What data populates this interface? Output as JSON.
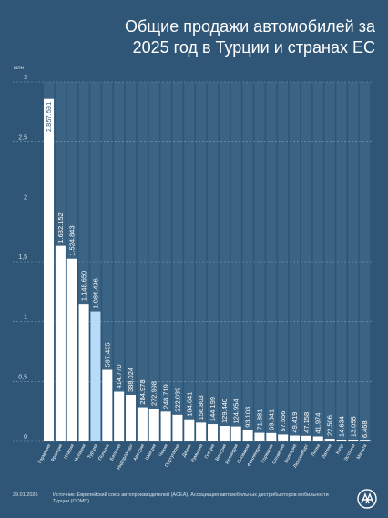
{
  "chart_data": {
    "type": "bar",
    "title": "Общие продажи автомобилей за 2025 год в Турции и странах ЕС",
    "ylabel": "млн",
    "ylim": [
      0,
      3
    ],
    "yticks": [
      0,
      0.5,
      1,
      1.5,
      2,
      2.5,
      3
    ],
    "ytick_labels": [
      "0",
      "0,5",
      "1",
      "1,5",
      "2",
      "2,5",
      "3"
    ],
    "grid": true,
    "categories": [
      "Германия",
      "Франция",
      "Италия",
      "Испания",
      "Турция",
      "Польша",
      "Бельгия",
      "Нидерланды",
      "Австрия",
      "Швеция",
      "Чехия",
      "Португалия",
      "Дания",
      "Румыния",
      "Греция",
      "Венгрия",
      "Ирландия",
      "Словакия",
      "Финляндия",
      "Хорватия",
      "Словения",
      "Болгария",
      "Люксембург",
      "Литва",
      "Латвия",
      "Кипр",
      "Эстония",
      "Мальта"
    ],
    "values": [
      2857591,
      1632152,
      1524843,
      1148650,
      1084496,
      597435,
      414770,
      388024,
      284978,
      272998,
      248719,
      222039,
      184641,
      156803,
      144199,
      129440,
      124954,
      93103,
      71881,
      69841,
      57556,
      49419,
      47158,
      41974,
      22506,
      14634,
      13055,
      6468
    ],
    "value_labels": [
      "2.857.591",
      "1.632.152",
      "1.524.843",
      "1.148.650",
      "1.084.496",
      "597.435",
      "414.770",
      "388.024",
      "284.978",
      "272.998",
      "248.719",
      "222.039",
      "184.641",
      "156.803",
      "144.199",
      "129.440",
      "124.954",
      "93.103",
      "71.881",
      "69.841",
      "57.556",
      "49.419",
      "47.158",
      "41.974",
      "22.506",
      "14.634",
      "13.055",
      "6.468"
    ],
    "highlight": "Турция",
    "colors": {
      "bar": "#ffffff",
      "highlight": "#b8dcf8",
      "column_bg": "#3b6484",
      "background": "#2f5676"
    }
  },
  "footer": {
    "date": "29.01.2026",
    "source": "Источник: Европейский союз автопроизводителей (ACEA), Ассоциация автомобильных дистрибьюторов мобильности Турции (ODMD)"
  },
  "logo": {
    "text": "AA",
    "icon": "aa-logo-icon"
  }
}
